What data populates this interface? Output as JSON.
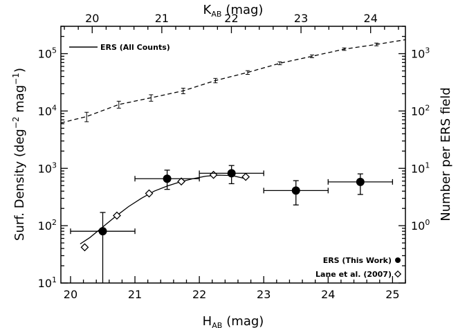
{
  "chart_data": {
    "type": "scatter",
    "xlabel_bottom": "H",
    "xlabel_bottom_sub": "AB",
    "xlabel_bottom_unit": "(mag)",
    "xlabel_top": "K",
    "xlabel_top_sub": "AB",
    "xlabel_top_unit": "(mag)",
    "ylabel_left": "Surf. Density (deg",
    "ylabel_left_exp1": "−2",
    "ylabel_left_mid": " mag",
    "ylabel_left_exp2": "−1",
    "ylabel_left_end": ")",
    "ylabel_right": "Number per ERS field",
    "xlim": [
      19.85,
      25.2
    ],
    "ylim": [
      10,
      300000
    ],
    "yscale": "log",
    "top_axis_xlim": [
      19.55,
      24.5
    ],
    "top_ticks": [
      "20",
      "21",
      "22",
      "23",
      "24"
    ],
    "bottom_ticks": [
      "20",
      "21",
      "22",
      "23",
      "24",
      "25"
    ],
    "left_ticks": [
      {
        "base": "10",
        "exp": "1",
        "value": 10
      },
      {
        "base": "10",
        "exp": "2",
        "value": 100
      },
      {
        "base": "10",
        "exp": "3",
        "value": 1000
      },
      {
        "base": "10",
        "exp": "4",
        "value": 10000
      },
      {
        "base": "10",
        "exp": "5",
        "value": 100000
      }
    ],
    "right_ticks": [
      {
        "base": "10",
        "exp": "0",
        "value": 1
      },
      {
        "base": "10",
        "exp": "1",
        "value": 10
      },
      {
        "base": "10",
        "exp": "2",
        "value": 100
      },
      {
        "base": "10",
        "exp": "3",
        "value": 1000
      }
    ],
    "right_axis_scale_factor": 100,
    "series": [
      {
        "name": "ERS (All Counts)",
        "style": "dashed-line-with-errorbars",
        "x": [
          19.85,
          20.25,
          20.75,
          21.25,
          21.75,
          22.25,
          22.75,
          23.25,
          23.75,
          24.25,
          24.75,
          25.2
        ],
        "y": [
          6200,
          8000,
          13000,
          17000,
          22500,
          34000,
          47000,
          68000,
          90000,
          120000,
          145000,
          175000
        ],
        "err_lo": [
          null,
          1500,
          1800,
          2200,
          2500,
          3000,
          3500,
          4000,
          5000,
          6000,
          8000,
          null
        ],
        "err_hi": [
          null,
          1500,
          1800,
          2200,
          2500,
          3000,
          3500,
          4000,
          5000,
          6000,
          8000,
          null
        ]
      },
      {
        "name": "ERS (This Work)",
        "marker": "filled-circle",
        "x": [
          20.5,
          21.5,
          22.5,
          23.5,
          24.5
        ],
        "y": [
          80,
          660,
          820,
          410,
          580
        ],
        "xerr": [
          0.5,
          0.5,
          0.5,
          0.5,
          0.5
        ],
        "err_lo": [
          75,
          230,
          280,
          180,
          230
        ],
        "err_hi": [
          90,
          270,
          300,
          200,
          220
        ]
      },
      {
        "name": "Lane et al. (2007)",
        "marker": "open-diamond",
        "x": [
          20.22,
          20.72,
          21.22,
          21.72,
          22.22,
          22.72
        ],
        "y": [
          42,
          150,
          365,
          590,
          770,
          710
        ]
      },
      {
        "name": "fit",
        "style": "solid-line",
        "x": [
          20.15,
          20.3,
          20.5,
          20.7,
          20.9,
          21.1,
          21.3,
          21.5,
          21.7,
          21.9,
          22.1,
          22.3,
          22.5,
          22.72
        ],
        "y": [
          48,
          62,
          95,
          145,
          215,
          300,
          400,
          490,
          580,
          660,
          730,
          760,
          750,
          660
        ]
      }
    ],
    "legend_entries": [
      {
        "label": "ERS (All Counts)",
        "position": "top-left"
      },
      {
        "label": "ERS (This Work)",
        "position": "bottom-right"
      },
      {
        "label": "Lane et al. (2007)",
        "position": "bottom-right"
      }
    ]
  }
}
